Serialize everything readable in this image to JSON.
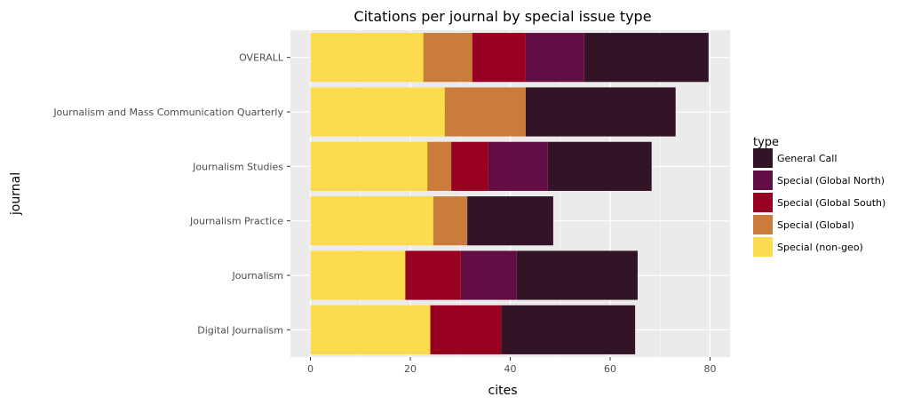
{
  "chart_data": {
    "type": "bar",
    "orientation": "horizontal",
    "stacked": true,
    "title": "Citations per journal by special issue type",
    "xlabel": "cites",
    "ylabel": "journal",
    "xlim": [
      -4,
      84
    ],
    "xticks": [
      0,
      20,
      40,
      60,
      80
    ],
    "grid": true,
    "legend_title": "type",
    "legend_position": "right",
    "categories": [
      "OVERALL",
      "Journalism and Mass Communication Quarterly",
      "Journalism Studies",
      "Journalism Practice",
      "Journalism",
      "Digital Journalism"
    ],
    "series": [
      {
        "name": "Special (non-geo)",
        "color": "#FCDB4E",
        "values": [
          22.6,
          26.9,
          23.4,
          24.6,
          19.0,
          24.0
        ]
      },
      {
        "name": "Special (Global)",
        "color": "#CB7C3B",
        "values": [
          9.8,
          16.2,
          4.8,
          6.8,
          0,
          0
        ]
      },
      {
        "name": "Special (Global South)",
        "color": "#970020",
        "values": [
          10.6,
          0,
          7.3,
          0,
          11.1,
          14.2
        ]
      },
      {
        "name": "Special (Global North)",
        "color": "#620E44",
        "values": [
          11.8,
          0,
          12.0,
          0,
          11.2,
          0
        ]
      },
      {
        "name": "General Call",
        "color": "#331326",
        "values": [
          24.9,
          30.0,
          20.8,
          17.2,
          24.2,
          26.8
        ]
      }
    ],
    "legend_order": [
      "General Call",
      "Special (Global North)",
      "Special (Global South)",
      "Special (Global)",
      "Special (non-geo)"
    ]
  }
}
